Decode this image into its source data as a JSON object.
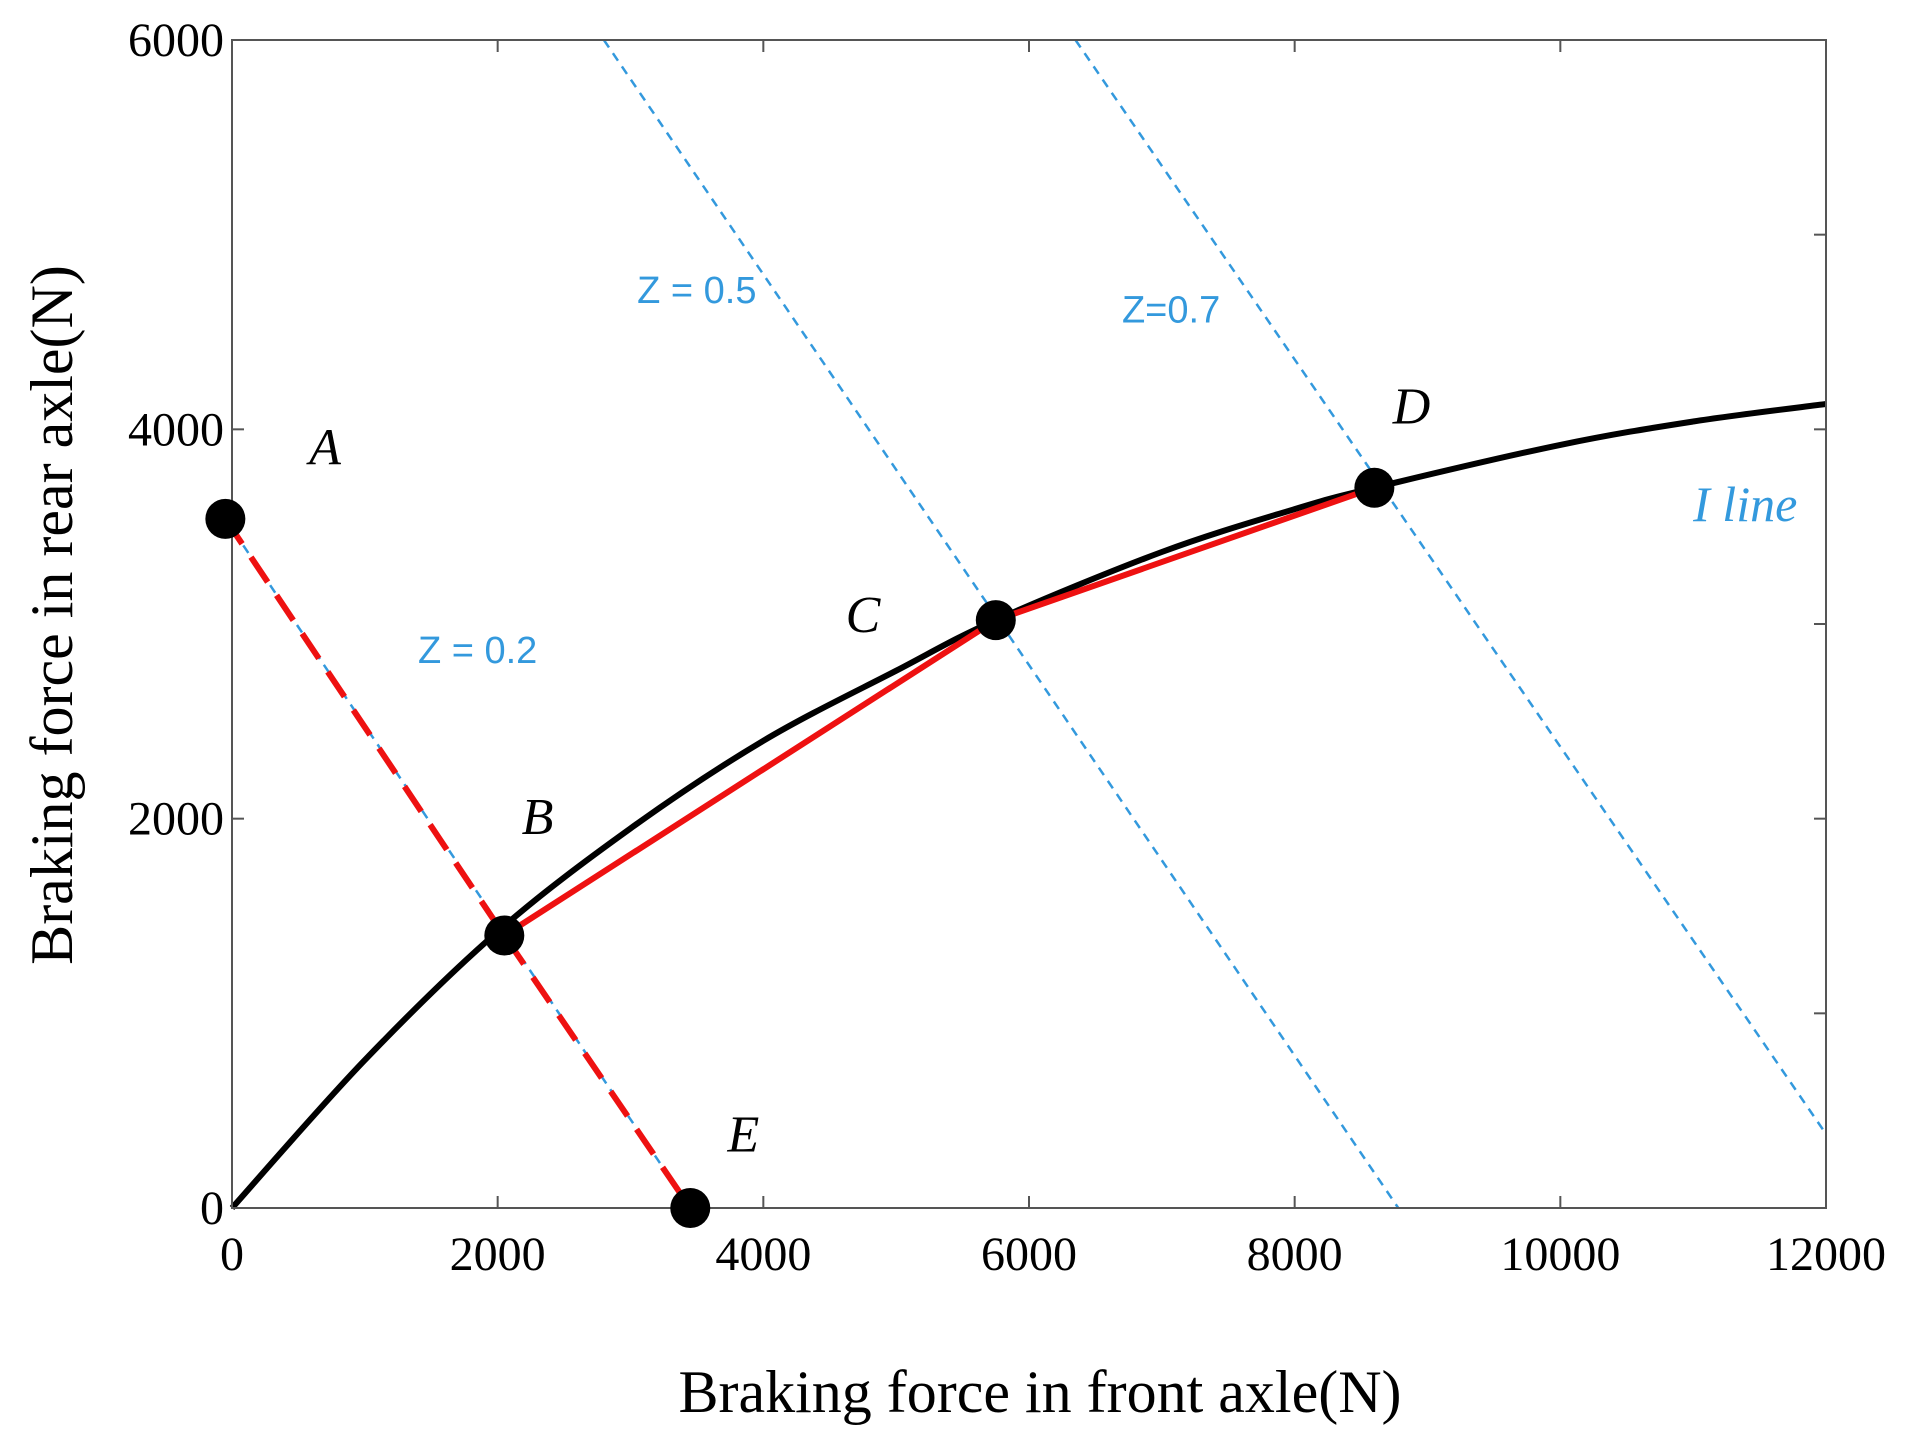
{
  "chart_data": {
    "type": "line",
    "xlabel": "Braking force in front axle(N)",
    "ylabel": "Braking force in rear axle(N)",
    "xlim": [
      0,
      12000
    ],
    "ylim": [
      0,
      6000
    ],
    "xticks": [
      0,
      2000,
      4000,
      6000,
      8000,
      10000,
      12000
    ],
    "yticks": [
      0,
      2000,
      4000,
      6000
    ],
    "x_tick_labels": [
      "0",
      "2000",
      "4000",
      "6000",
      "8000",
      "10000",
      "12000"
    ],
    "y_tick_labels": [
      "0",
      "2000",
      "4000",
      "6000"
    ],
    "grid": false,
    "colors": {
      "ideal_curve": "#000000",
      "strategy": "#ee1111",
      "z_lines": "#3399dd",
      "points": "#000000"
    },
    "ideal_curve": {
      "label": "I line",
      "x": [
        0,
        1000,
        2000,
        3000,
        4000,
        5000,
        5750,
        7000,
        8000,
        8600,
        10000,
        11000,
        12000
      ],
      "y": [
        0,
        760,
        1420,
        1950,
        2400,
        2760,
        3020,
        3370,
        3590,
        3700,
        3920,
        4040,
        4130
      ]
    },
    "strategy_solid": {
      "x": [
        2050,
        5750,
        8600
      ],
      "y": [
        1400,
        3020,
        3700
      ]
    },
    "strategy_dashed": {
      "x": [
        -50,
        2050,
        3450
      ],
      "y": [
        3540,
        1400,
        0
      ]
    },
    "z_lines": [
      {
        "label": "Z = 0.2",
        "x": [
          -50,
          3450
        ],
        "y": [
          3540,
          0
        ],
        "text_at": [
          1400,
          2800
        ]
      },
      {
        "label": "Z = 0.5",
        "x": [
          2800,
          8780
        ],
        "y": [
          6000,
          0
        ],
        "text_at": [
          3050,
          4650
        ]
      },
      {
        "label": "Z=0.7",
        "x": [
          6350,
          12000
        ],
        "y": [
          6000,
          380
        ],
        "text_at": [
          6700,
          4550
        ]
      }
    ],
    "points": [
      {
        "label": "A",
        "x": -50,
        "y": 3540,
        "text_at": [
          700,
          3820
        ]
      },
      {
        "label": "B",
        "x": 2050,
        "y": 1400,
        "text_at": [
          2300,
          1920
        ]
      },
      {
        "label": "C",
        "x": 5750,
        "y": 3020,
        "text_at": [
          4750,
          2960
        ]
      },
      {
        "label": "D",
        "x": 8600,
        "y": 3700,
        "text_at": [
          8880,
          4030
        ]
      },
      {
        "label": "E",
        "x": 3450,
        "y": 0,
        "text_at": [
          3850,
          290
        ]
      }
    ],
    "iline_text_at": [
      11000,
      3530
    ]
  }
}
